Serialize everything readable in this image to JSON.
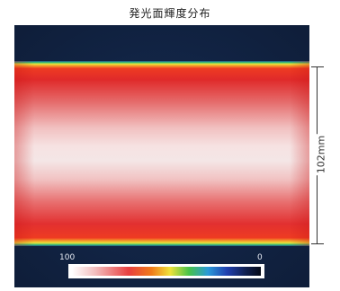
{
  "title": "発光面輝度分布",
  "colorbar": {
    "max_label": "100",
    "min_label": "0"
  },
  "dimension": {
    "label": "102mm"
  }
}
